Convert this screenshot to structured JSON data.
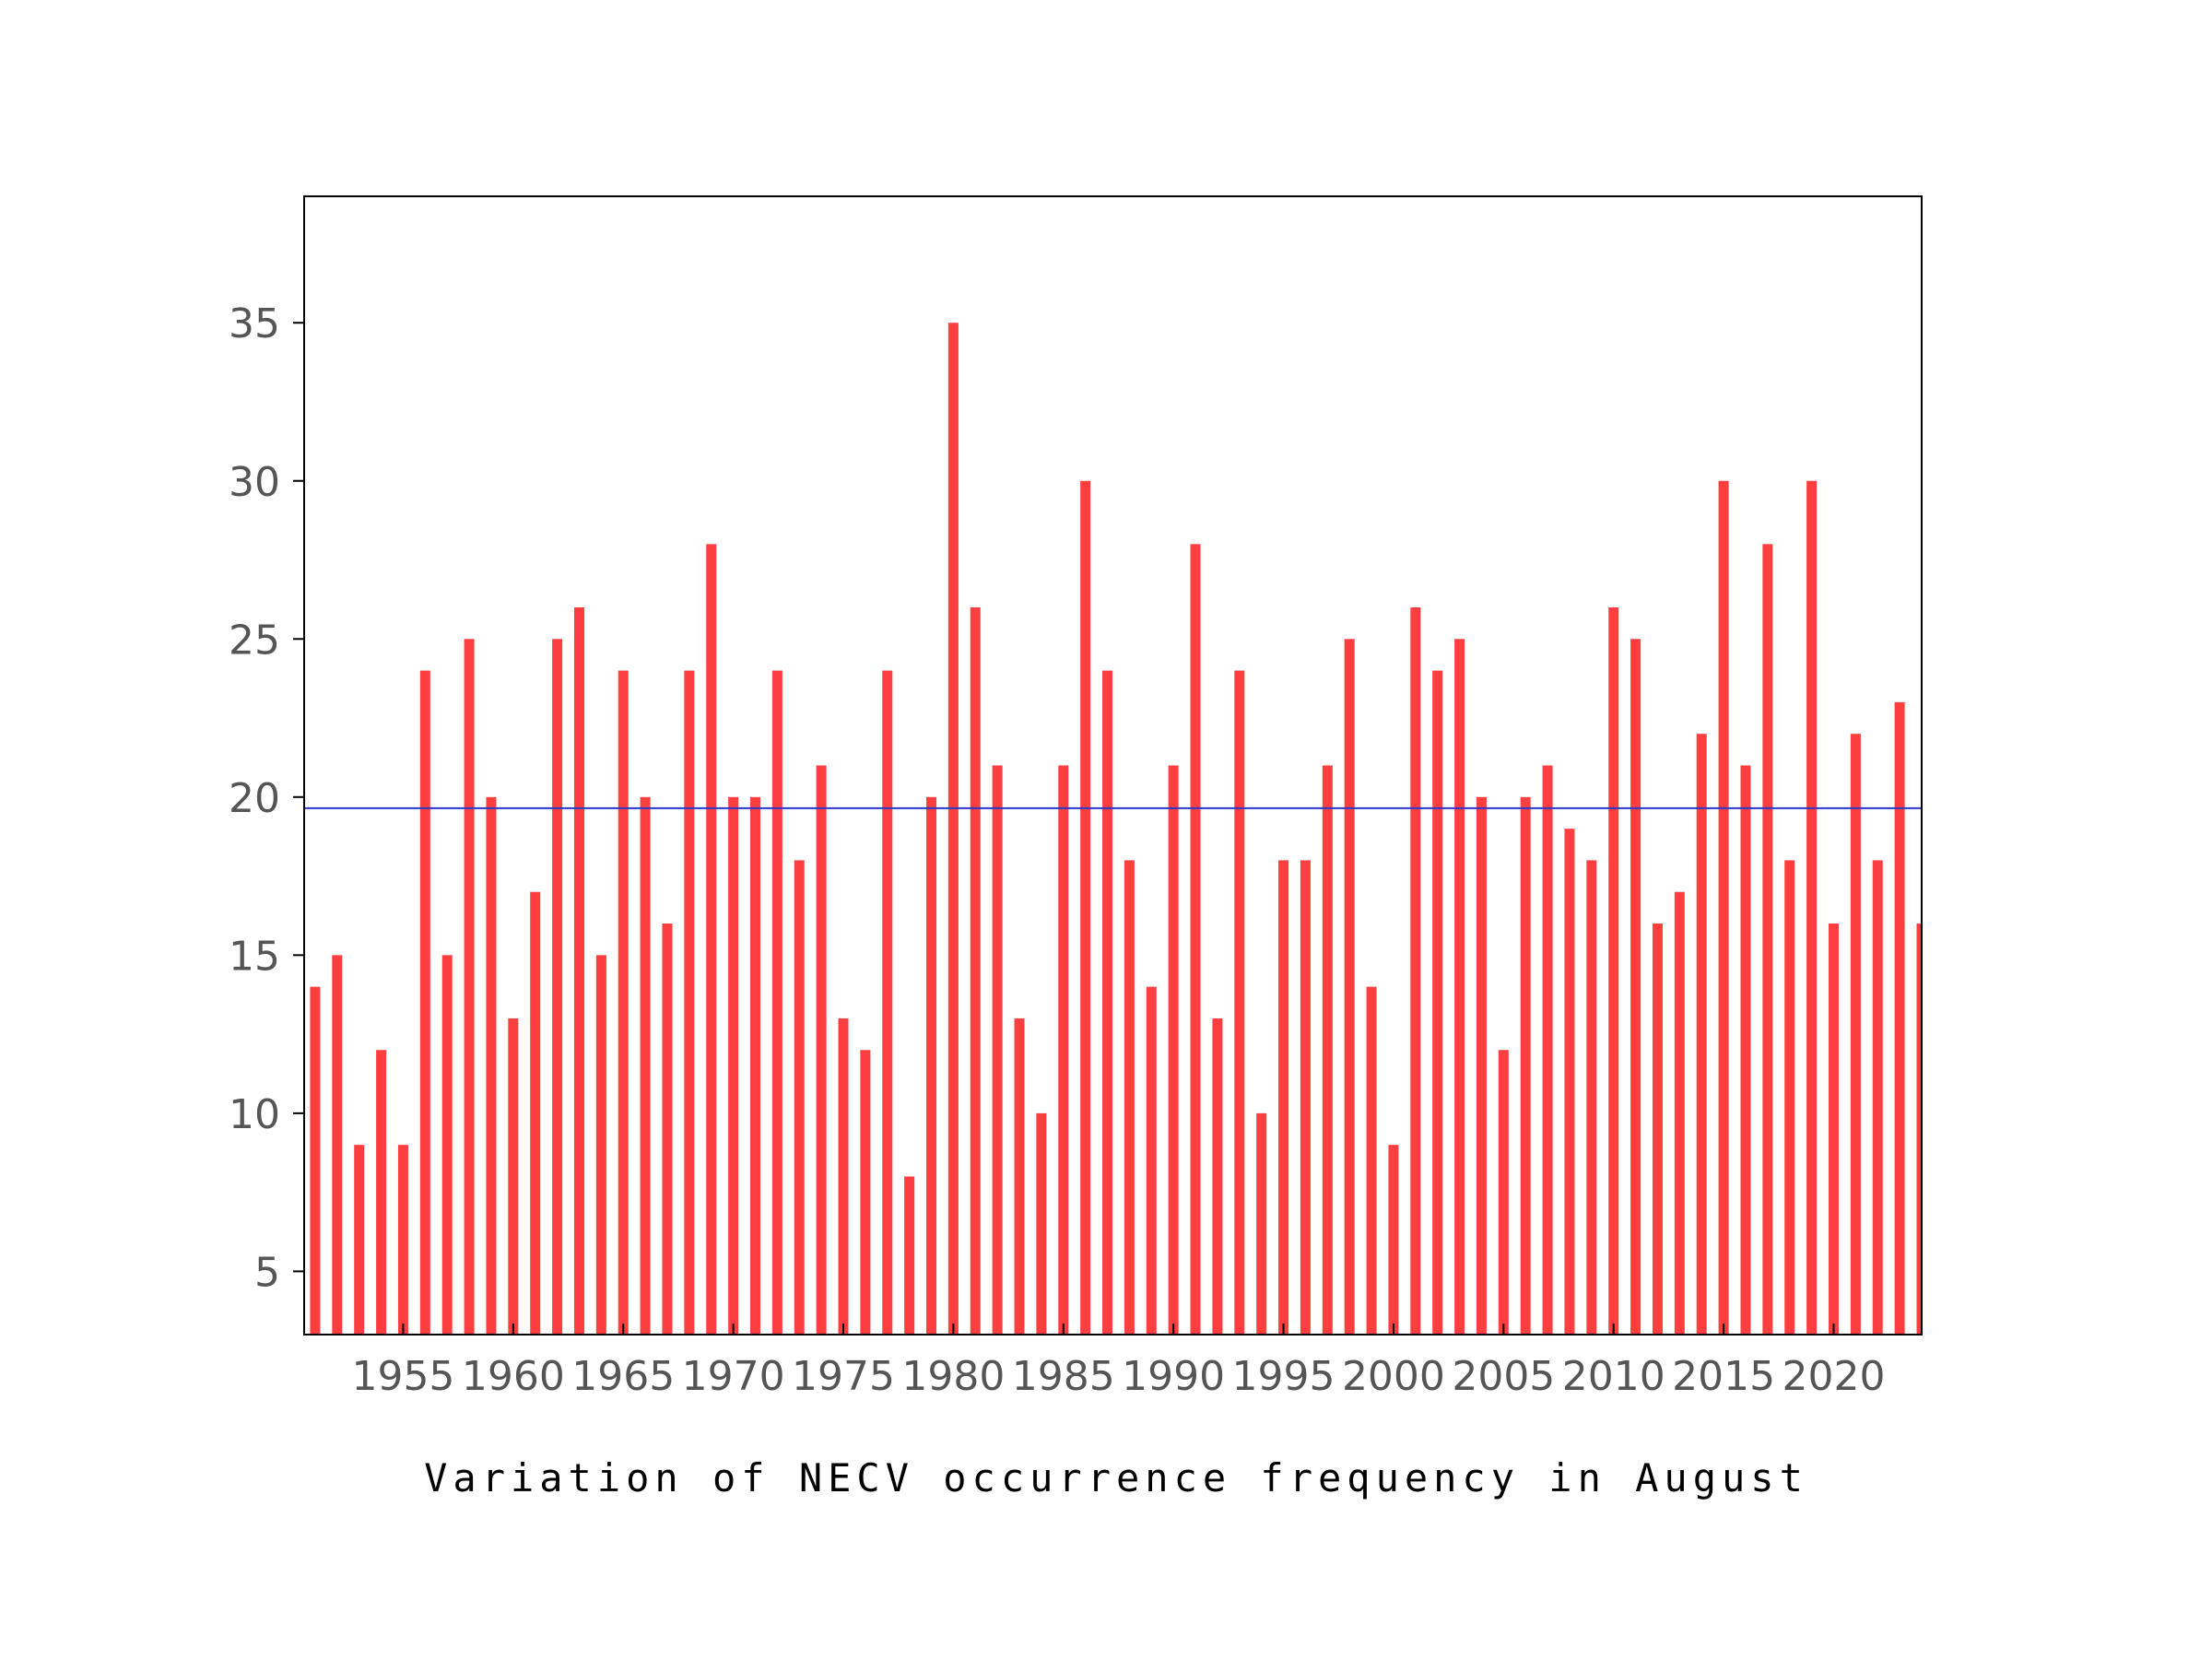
{
  "chart_data": {
    "type": "bar",
    "title": "",
    "xlabel": "Variation of NECV occurrence frequency in August",
    "ylabel": "",
    "x": [
      1951,
      1952,
      1953,
      1954,
      1955,
      1956,
      1957,
      1958,
      1959,
      1960,
      1961,
      1962,
      1963,
      1964,
      1965,
      1966,
      1967,
      1968,
      1969,
      1970,
      1971,
      1972,
      1973,
      1974,
      1975,
      1976,
      1977,
      1978,
      1979,
      1980,
      1981,
      1982,
      1983,
      1984,
      1985,
      1986,
      1987,
      1988,
      1989,
      1990,
      1991,
      1992,
      1993,
      1994,
      1995,
      1996,
      1997,
      1998,
      1999,
      2000,
      2001,
      2002,
      2003,
      2004,
      2005,
      2006,
      2007,
      2008,
      2009,
      2010,
      2011,
      2012,
      2013,
      2014,
      2015,
      2016,
      2017,
      2018,
      2019,
      2020,
      2021,
      2022,
      2023,
      2024
    ],
    "values": [
      14,
      15,
      9,
      12,
      9,
      24,
      15,
      25,
      20,
      13,
      17,
      25,
      26,
      15,
      24,
      20,
      16,
      24,
      28,
      20,
      20,
      24,
      18,
      21,
      13,
      12,
      24,
      8,
      20,
      35,
      26,
      21,
      13,
      10,
      21,
      30,
      24,
      18,
      14,
      21,
      28,
      13,
      24,
      10,
      18,
      18,
      21,
      25,
      14,
      9,
      26,
      24,
      25,
      20,
      12,
      20,
      21,
      19,
      18,
      26,
      25,
      16,
      17,
      22,
      30,
      21,
      28,
      18,
      30,
      16,
      22,
      18,
      23,
      16
    ],
    "mean_line": 19.65,
    "xlim": [
      1950.5,
      2024.0
    ],
    "ylim": [
      3,
      39
    ],
    "xticks": [
      1955,
      1960,
      1965,
      1970,
      1975,
      1980,
      1985,
      1990,
      1995,
      2000,
      2005,
      2010,
      2015,
      2020
    ],
    "yticks": [
      5,
      10,
      15,
      20,
      25,
      30,
      35
    ],
    "grid": false,
    "legend": "none",
    "bar_color": "#ff3f3f",
    "mean_line_color": "#2a37c8"
  }
}
